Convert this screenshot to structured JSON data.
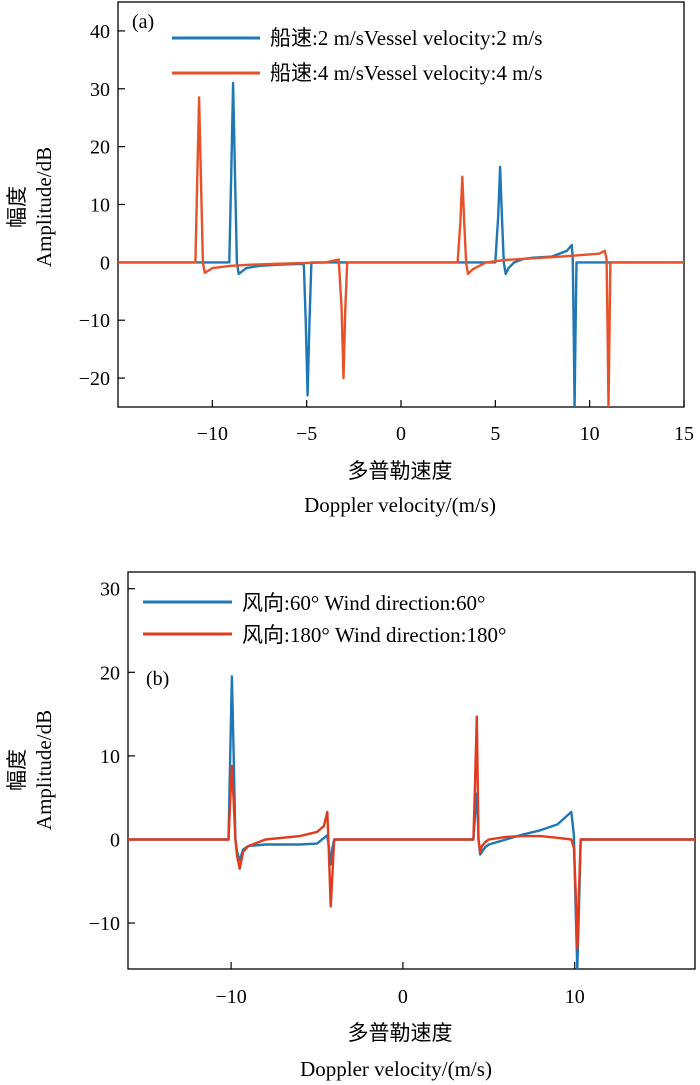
{
  "chart_data": [
    {
      "type": "line",
      "panel_label": "(a)",
      "xlabel_cn": "多普勒速度",
      "xlabel_en": "Doppler velocity/(m/s)",
      "ylabel_cn": "幅度",
      "ylabel_en": "Amplitude/dB",
      "xlim": [
        -15,
        15
      ],
      "ylim": [
        -25,
        45
      ],
      "xticks": [
        -10,
        -5,
        0,
        5,
        10,
        15
      ],
      "xtick_labels": [
        "−10",
        "−5",
        "0",
        "5",
        "10",
        "15"
      ],
      "yticks": [
        -20,
        -10,
        0,
        10,
        20,
        30,
        40
      ],
      "ytick_labels": [
        "−20",
        "−10",
        "0",
        "10",
        "20",
        "30",
        "40"
      ],
      "legend_position": "top-right",
      "grid": false,
      "series": [
        {
          "name": "船速:2 m/sVessel velocity:2 m/s",
          "color": "#1f77b4",
          "x": [
            -15,
            -9.1,
            -9.0,
            -8.9,
            -8.8,
            -8.7,
            -8.6,
            -8.2,
            -7.5,
            -6.5,
            -5.5,
            -5.15,
            -5.05,
            -4.95,
            -4.85,
            -4.75,
            5.0,
            5.15,
            5.25,
            5.35,
            5.45,
            5.55,
            5.7,
            6.0,
            6.5,
            7.0,
            8.0,
            8.8,
            9.05,
            9.1,
            9.15,
            9.2,
            9.25,
            9.3,
            9.4,
            15
          ],
          "y": [
            0,
            0,
            15,
            31,
            15,
            0,
            -2,
            -1,
            -0.6,
            -0.4,
            -0.3,
            -0.3,
            -10,
            -23,
            -10,
            0,
            0,
            8,
            16.5,
            8,
            0,
            -2,
            -1,
            0,
            0.6,
            0.8,
            1.0,
            2.0,
            3.0,
            1.0,
            -10,
            -25,
            -12,
            0,
            0,
            0
          ]
        },
        {
          "name": "船速:4 m/sVessel velocity:4 m/s",
          "color": "#e8522a",
          "x": [
            -15,
            -10.9,
            -10.8,
            -10.7,
            -10.6,
            -10.5,
            -10.4,
            -10.0,
            -9.0,
            -8.0,
            -6.0,
            -4.0,
            -3.3,
            -3.15,
            -3.05,
            -2.95,
            -2.85,
            3.0,
            3.15,
            3.25,
            3.35,
            3.45,
            3.55,
            3.8,
            4.5,
            5.5,
            7.0,
            8.5,
            10.5,
            10.8,
            10.9,
            10.95,
            11.0,
            11.05,
            11.1,
            11.2,
            15
          ],
          "y": [
            0,
            0,
            14,
            28.5,
            14,
            0,
            -1.8,
            -1.0,
            -0.6,
            -0.4,
            -0.2,
            0,
            0.5,
            -8,
            -20,
            -8,
            0,
            0,
            7,
            14.8,
            7,
            0,
            -2,
            -1.2,
            0,
            0.4,
            0.7,
            1.0,
            1.5,
            2.0,
            0.5,
            -12,
            -25,
            -12,
            0,
            0,
            0
          ]
        }
      ]
    },
    {
      "type": "line",
      "panel_label": "(b)",
      "xlabel_cn": "多普勒速度",
      "xlabel_en": "Doppler velocity/(m/s)",
      "ylabel_cn": "幅度",
      "ylabel_en": "Amplitude/dB",
      "xlim": [
        -16,
        17
      ],
      "ylim": [
        -15.5,
        32
      ],
      "xticks": [
        -10,
        0,
        10
      ],
      "xtick_labels": [
        "−10",
        "0",
        "10"
      ],
      "yticks": [
        -10,
        0,
        10,
        20,
        30
      ],
      "ytick_labels": [
        "−10",
        "0",
        "10",
        "20",
        "30"
      ],
      "legend_position": "top-left",
      "grid": false,
      "series": [
        {
          "name": "风向:60° Wind direction:60°",
          "color": "#1f77b4",
          "x": [
            -16,
            -10.15,
            -10.05,
            -9.95,
            -9.85,
            -9.75,
            -9.65,
            -9.5,
            -9.3,
            -9.0,
            -8.0,
            -6.0,
            -5.0,
            -4.4,
            -4.3,
            -4.2,
            -4.1,
            -4.0,
            4.1,
            4.2,
            4.3,
            4.35,
            4.4,
            4.5,
            4.6,
            4.8,
            5.0,
            6.0,
            7.0,
            8.0,
            9.0,
            9.8,
            9.95,
            10.05,
            10.15,
            10.25,
            10.35,
            17
          ],
          "y": [
            0,
            0,
            10,
            19.5,
            10,
            0,
            -1.5,
            -2.5,
            -1.2,
            -0.8,
            -0.6,
            -0.6,
            -0.5,
            0.5,
            -1,
            -3,
            -1,
            0,
            0,
            3,
            5.5,
            3,
            0,
            -1.8,
            -1.5,
            -0.9,
            -0.6,
            0,
            0.6,
            1.1,
            1.8,
            3.3,
            0.5,
            -8,
            -15.5,
            -8,
            0,
            0
          ]
        },
        {
          "name": "风向:180° Wind direction:180°",
          "color": "#e03b1f",
          "x": [
            -16,
            -10.15,
            -10.05,
            -9.95,
            -9.85,
            -9.75,
            -9.65,
            -9.5,
            -9.3,
            -9.0,
            -8.0,
            -6.0,
            -5.0,
            -4.6,
            -4.4,
            -4.3,
            -4.2,
            -4.1,
            -4.0,
            -3.9,
            4.1,
            4.2,
            4.3,
            4.35,
            4.4,
            4.5,
            4.6,
            4.8,
            5.0,
            6.0,
            7.0,
            8.0,
            9.0,
            9.8,
            9.95,
            10.05,
            10.15,
            10.25,
            10.35,
            17
          ],
          "y": [
            0,
            0,
            4.5,
            8.8,
            4.5,
            0,
            -2,
            -3.5,
            -1.5,
            -0.8,
            0,
            0.4,
            0.9,
            1.6,
            3.3,
            -2,
            -8,
            -4,
            0,
            0,
            0,
            7,
            14.7,
            7,
            0,
            -1.5,
            -0.8,
            -0.3,
            0,
            0.3,
            0.4,
            0.4,
            0.2,
            0,
            -1,
            -6,
            -13,
            -6,
            0,
            0
          ]
        }
      ]
    }
  ]
}
